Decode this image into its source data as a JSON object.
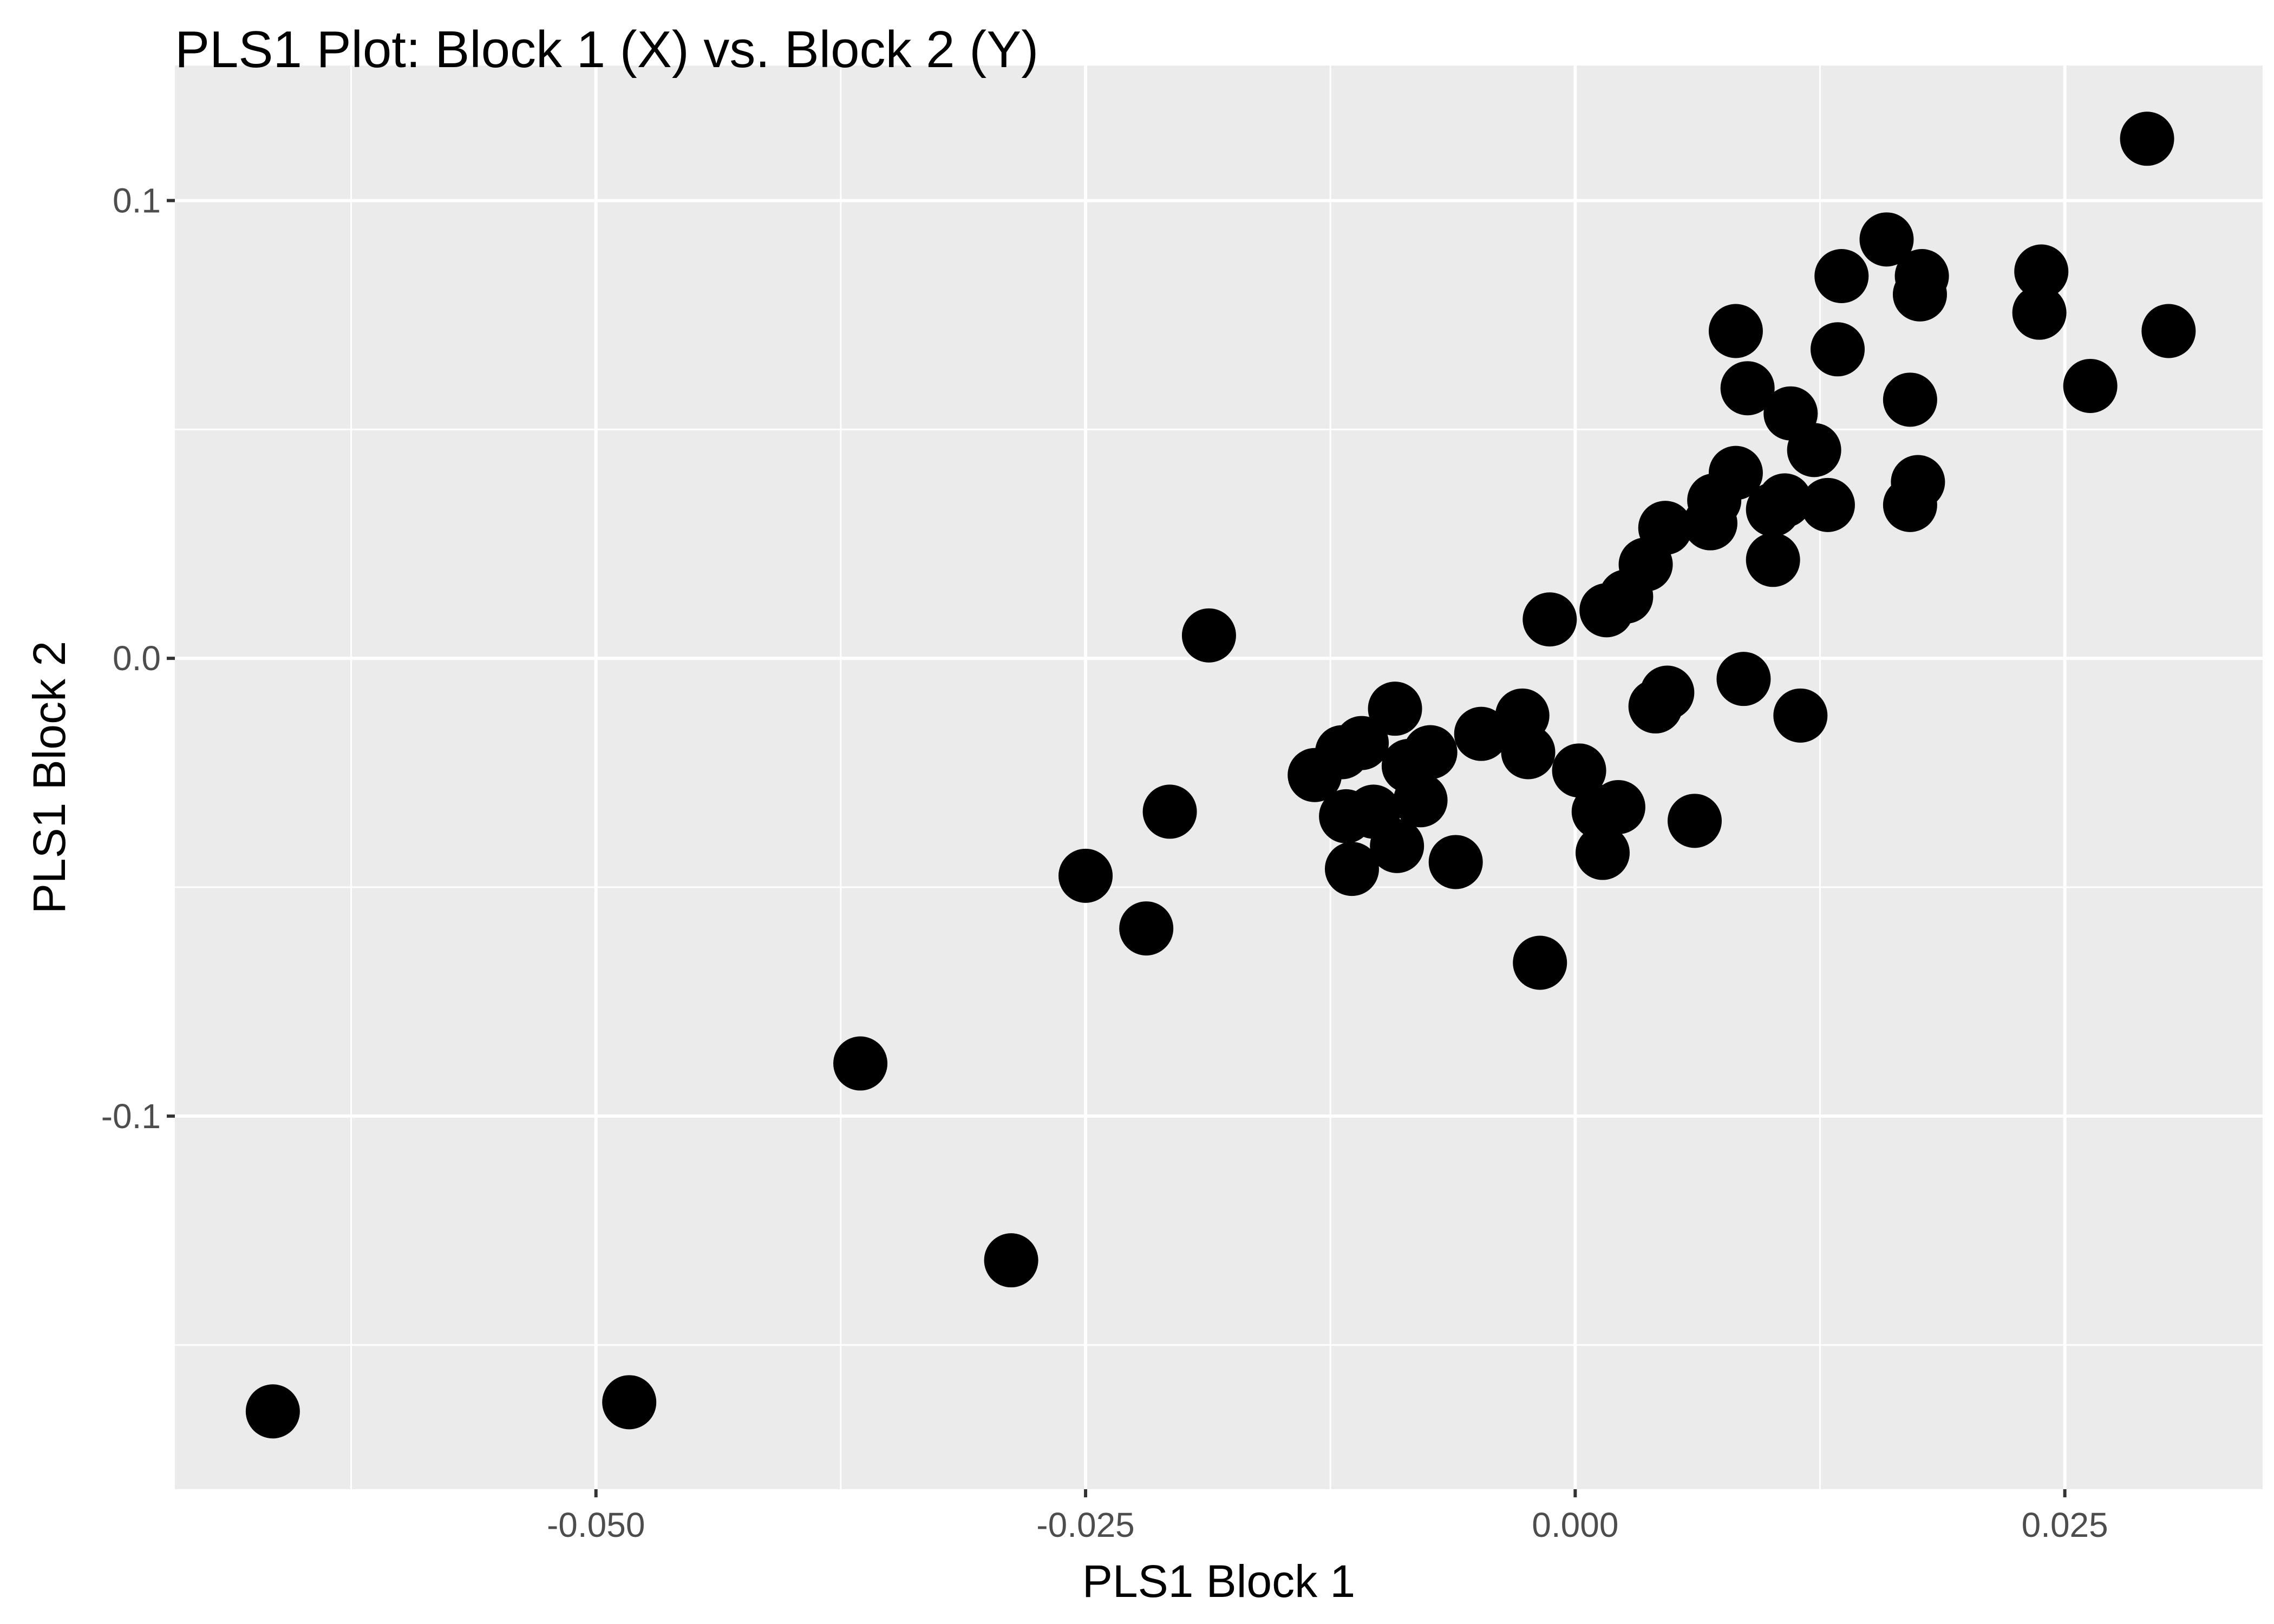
{
  "chart_data": {
    "type": "scatter",
    "title": "PLS1 Plot: Block 1 (X) vs. Block 2 (Y)",
    "xlabel": "PLS1 Block 1",
    "ylabel": "PLS1 Block 2",
    "xlim": [
      -0.0715,
      0.0351
    ],
    "ylim": [
      -0.1815,
      0.1295
    ],
    "x_ticks": [
      {
        "value": -0.05,
        "label": "-0.050"
      },
      {
        "value": -0.025,
        "label": "-0.025"
      },
      {
        "value": 0.0,
        "label": "0.000"
      },
      {
        "value": 0.025,
        "label": "0.025"
      }
    ],
    "x_minor_ticks": [
      -0.0625,
      -0.0375,
      -0.0125,
      0.0125
    ],
    "y_ticks": [
      {
        "value": -0.1,
        "label": "-0.1"
      },
      {
        "value": 0.0,
        "label": "0.0"
      },
      {
        "value": 0.1,
        "label": "0.1"
      }
    ],
    "y_minor_ticks": [
      -0.15,
      -0.05,
      0.05
    ],
    "grid": true,
    "panel_background": "#ebebeb",
    "grid_color": "#ffffff",
    "point_color": "#000000",
    "points": [
      {
        "x": -0.0665,
        "y": -0.1645
      },
      {
        "x": -0.0483,
        "y": -0.1625
      },
      {
        "x": -0.0365,
        "y": -0.0885
      },
      {
        "x": -0.0288,
        "y": -0.1315
      },
      {
        "x": -0.025,
        "y": -0.0475
      },
      {
        "x": -0.0219,
        "y": -0.059
      },
      {
        "x": -0.0207,
        "y": -0.0335
      },
      {
        "x": -0.0187,
        "y": 0.005
      },
      {
        "x": -0.0133,
        "y": -0.0255
      },
      {
        "x": -0.0119,
        "y": -0.0205
      },
      {
        "x": -0.0117,
        "y": -0.0345
      },
      {
        "x": -0.0114,
        "y": -0.046
      },
      {
        "x": -0.0109,
        "y": -0.0185
      },
      {
        "x": -0.0103,
        "y": -0.0335
      },
      {
        "x": -0.0092,
        "y": -0.011
      },
      {
        "x": -0.0091,
        "y": -0.041
      },
      {
        "x": -0.0085,
        "y": -0.0235
      },
      {
        "x": -0.0079,
        "y": -0.031
      },
      {
        "x": -0.0074,
        "y": -0.0205
      },
      {
        "x": -0.0061,
        "y": -0.0445
      },
      {
        "x": -0.0048,
        "y": -0.0165
      },
      {
        "x": -0.0027,
        "y": -0.0125
      },
      {
        "x": -0.0024,
        "y": -0.0205
      },
      {
        "x": -0.0018,
        "y": -0.0665
      },
      {
        "x": -0.0013,
        "y": 0.0085
      },
      {
        "x": 0.0002,
        "y": -0.0245
      },
      {
        "x": 0.0012,
        "y": -0.0335
      },
      {
        "x": 0.0014,
        "y": -0.0425
      },
      {
        "x": 0.0016,
        "y": 0.0105
      },
      {
        "x": 0.0022,
        "y": -0.0325
      },
      {
        "x": 0.0026,
        "y": 0.0135
      },
      {
        "x": 0.0036,
        "y": 0.0205
      },
      {
        "x": 0.0041,
        "y": -0.0105
      },
      {
        "x": 0.0047,
        "y": -0.0075
      },
      {
        "x": 0.0046,
        "y": 0.0285
      },
      {
        "x": 0.0061,
        "y": -0.0355
      },
      {
        "x": 0.0069,
        "y": 0.0295
      },
      {
        "x": 0.0071,
        "y": 0.0345
      },
      {
        "x": 0.0082,
        "y": 0.0405
      },
      {
        "x": 0.0082,
        "y": 0.0715
      },
      {
        "x": 0.0086,
        "y": -0.0045
      },
      {
        "x": 0.0088,
        "y": 0.059
      },
      {
        "x": 0.0101,
        "y": 0.0325
      },
      {
        "x": 0.0101,
        "y": 0.0215
      },
      {
        "x": 0.0107,
        "y": 0.0345
      },
      {
        "x": 0.011,
        "y": 0.0535
      },
      {
        "x": 0.0115,
        "y": -0.0125
      },
      {
        "x": 0.0122,
        "y": 0.0455
      },
      {
        "x": 0.0129,
        "y": 0.0335
      },
      {
        "x": 0.0134,
        "y": 0.0675
      },
      {
        "x": 0.0136,
        "y": 0.0835
      },
      {
        "x": 0.0159,
        "y": 0.0915
      },
      {
        "x": 0.0171,
        "y": 0.0565
      },
      {
        "x": 0.0171,
        "y": 0.0335
      },
      {
        "x": 0.0175,
        "y": 0.0385
      },
      {
        "x": 0.0176,
        "y": 0.0795
      },
      {
        "x": 0.0177,
        "y": 0.0835
      },
      {
        "x": 0.0237,
        "y": 0.0755
      },
      {
        "x": 0.0238,
        "y": 0.0845
      },
      {
        "x": 0.0263,
        "y": 0.0595
      },
      {
        "x": 0.0292,
        "y": 0.1135
      },
      {
        "x": 0.0303,
        "y": 0.0715
      }
    ]
  }
}
